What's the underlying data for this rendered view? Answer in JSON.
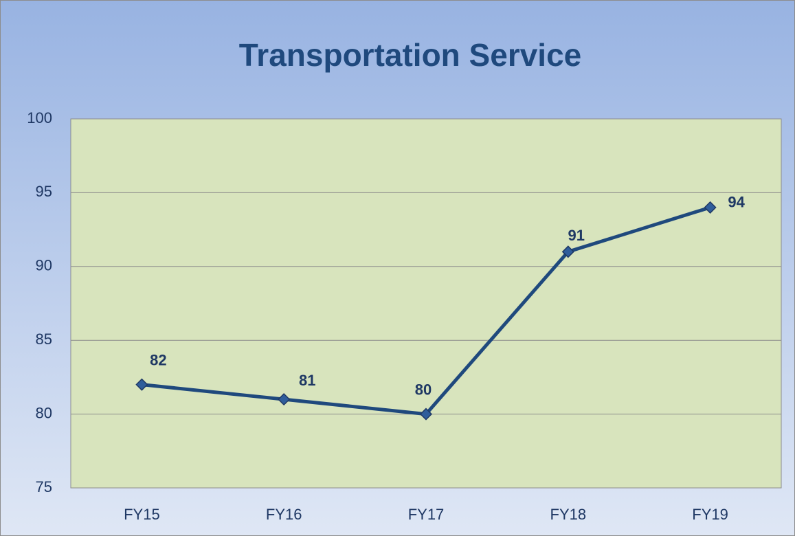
{
  "chart_data": {
    "type": "line",
    "title": "Transportation Service",
    "categories": [
      "FY15",
      "FY16",
      "FY17",
      "FY18",
      "FY19"
    ],
    "series": [
      {
        "name": "Transportation Service",
        "color": "#1f497d",
        "values": [
          82,
          81,
          80,
          91,
          94
        ]
      }
    ],
    "ylim": [
      75,
      100
    ],
    "yticks": [
      75,
      80,
      85,
      90,
      95,
      100
    ],
    "grid": true
  }
}
